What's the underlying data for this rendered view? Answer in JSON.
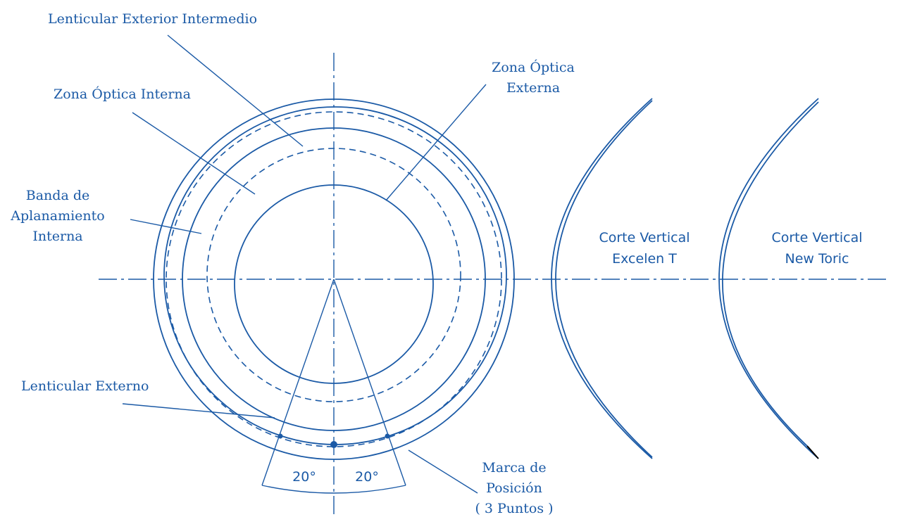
{
  "colors": {
    "stroke": "#1b5aa6",
    "background": "#ffffff",
    "tip": "#000000"
  },
  "labels": {
    "lenticular_exterior_intermedio": "Lenticular Exterior Intermedio",
    "zona_optica_interna": "Zona Óptica Interna",
    "zona_optica_externa_1": "Zona Óptica",
    "zona_optica_externa_2": "Externa",
    "banda_1": "Banda de",
    "banda_2": "Aplanamiento",
    "banda_3": "Interna",
    "lenticular_externo": "Lenticular Externo",
    "marca_1": "Marca de",
    "marca_2": "Posición",
    "marca_3": "( 3 Puntos )",
    "angle_left": "20°",
    "angle_right": "20°",
    "corte_excelen_1": "Corte Vertical",
    "corte_excelen_2": "Excelen T",
    "corte_newtoric_1": "Corte Vertical",
    "corte_newtoric_2": "New Toric"
  }
}
